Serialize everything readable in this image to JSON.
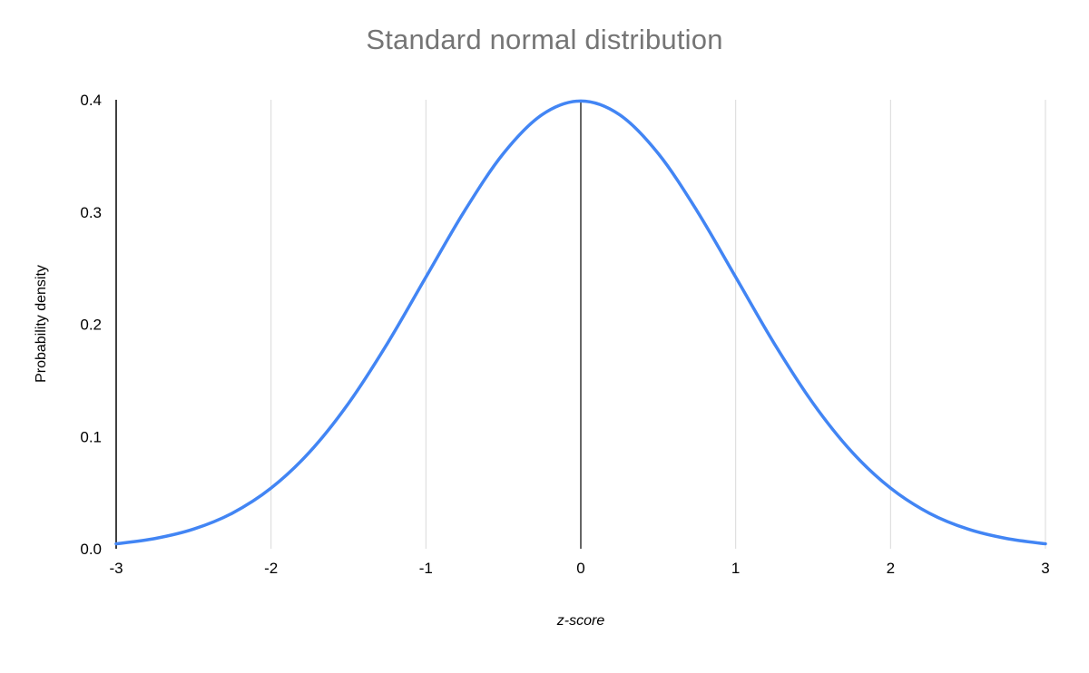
{
  "chart_data": {
    "type": "line",
    "title": "Standard normal distribution",
    "xlabel": "z-score",
    "ylabel": "Probability density",
    "xlim": [
      -3,
      3
    ],
    "ylim": [
      0,
      0.4
    ],
    "x_ticks": [
      -3,
      -2,
      -1,
      0,
      1,
      2,
      3
    ],
    "x_tick_labels": [
      "-3",
      "-2",
      "-1",
      "0",
      "1",
      "2",
      "3"
    ],
    "y_ticks": [
      0,
      0.1,
      0.2,
      0.3,
      0.4
    ],
    "y_tick_labels": [
      "0.0",
      "0.1",
      "0.2",
      "0.3",
      "0.4"
    ],
    "grid": {
      "vertical_gridlines_at": [
        -2,
        -1,
        1,
        2,
        3
      ],
      "horizontal_gridlines": false,
      "zero_line_x": 0,
      "gridline_color": "#d9d9d9",
      "axis_color": "#000000"
    },
    "legend_position": "none",
    "series": [
      {
        "name": "Probability density",
        "color": "#4285f4",
        "x": [
          -3,
          -2.75,
          -2.5,
          -2.25,
          -2,
          -1.75,
          -1.5,
          -1.25,
          -1,
          -0.75,
          -0.5,
          -0.25,
          0,
          0.25,
          0.5,
          0.75,
          1,
          1.25,
          1.5,
          1.75,
          2,
          2.25,
          2.5,
          2.75,
          3
        ],
        "y": [
          0.0044,
          0.0091,
          0.0175,
          0.0317,
          0.054,
          0.0863,
          0.1295,
          0.1826,
          0.242,
          0.3011,
          0.3521,
          0.3867,
          0.3989,
          0.3867,
          0.3521,
          0.3011,
          0.242,
          0.1826,
          0.1295,
          0.0863,
          0.054,
          0.0317,
          0.0175,
          0.0091,
          0.0044
        ]
      }
    ]
  }
}
